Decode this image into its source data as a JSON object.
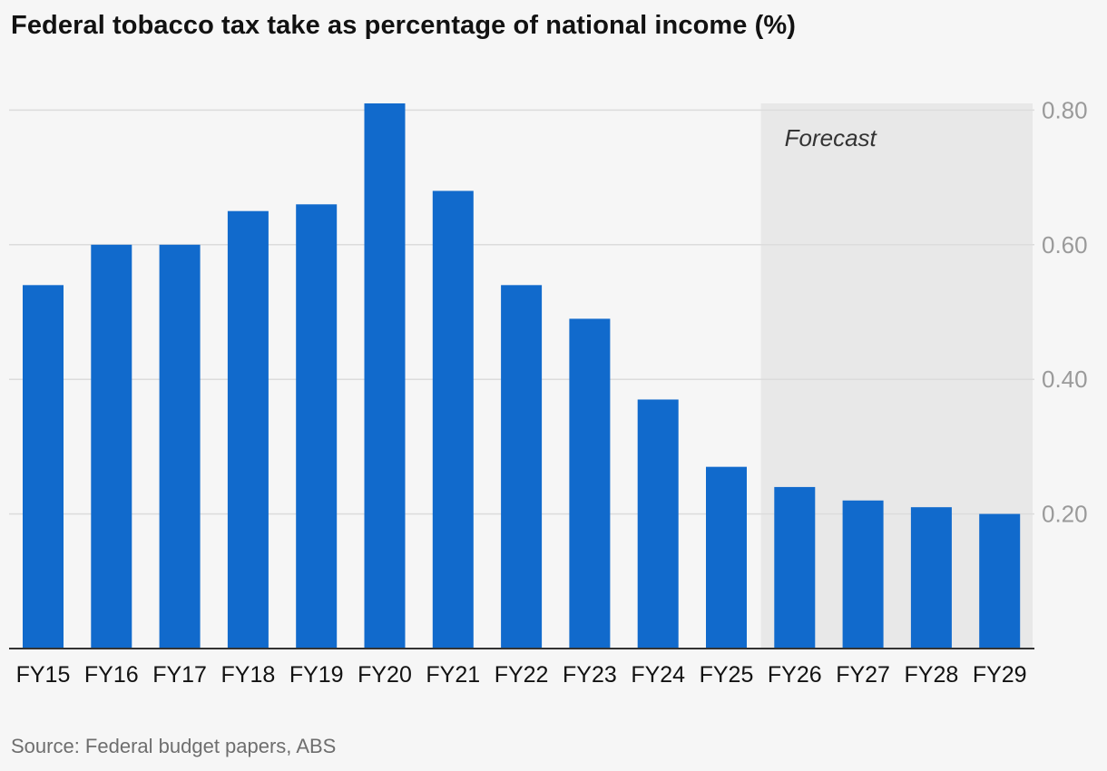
{
  "title": "Federal tobacco tax take as percentage of national income (%)",
  "source": "Source: Federal budget papers, ABS",
  "forecast_label": "Forecast",
  "colors": {
    "bar": "#116acc",
    "forecast_band": "#e8e8e8",
    "gridline": "#dcdcdc",
    "baseline": "#333333",
    "tick_label": "#9a9a9a",
    "category_label": "#121212",
    "title": "#121212",
    "source": "#6e6e6e",
    "background": "#f6f6f6"
  },
  "chart_data": {
    "type": "bar",
    "title": "Federal tobacco tax take as percentage of national income (%)",
    "xlabel": "",
    "ylabel": "",
    "categories": [
      "FY15",
      "FY16",
      "FY17",
      "FY18",
      "FY19",
      "FY20",
      "FY21",
      "FY22",
      "FY23",
      "FY24",
      "FY25",
      "FY26",
      "FY27",
      "FY28",
      "FY29"
    ],
    "values": [
      0.54,
      0.6,
      0.6,
      0.65,
      0.66,
      0.81,
      0.68,
      0.54,
      0.49,
      0.37,
      0.27,
      0.24,
      0.22,
      0.21,
      0.2
    ],
    "ylim": [
      0,
      0.81
    ],
    "yticks": [
      0.2,
      0.4,
      0.6,
      0.8
    ],
    "ytick_labels": [
      "0.20",
      "0.40",
      "0.60",
      "0.80"
    ],
    "y_axis_side": "right",
    "grid": true,
    "legend": "none",
    "forecast_start": "FY26",
    "forecast_end": "FY29",
    "annotations": [
      "Forecast"
    ]
  }
}
